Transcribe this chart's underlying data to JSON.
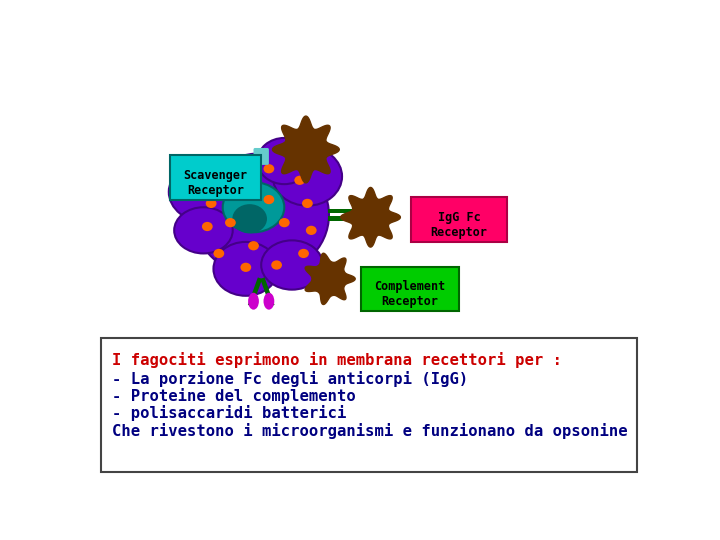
{
  "bg_color": "#ffffff",
  "text_box": {
    "line1": {
      "text": "I fagociti esprimono in membrana recettori per :",
      "color": "#cc0000",
      "bold": true
    },
    "line2": {
      "text": "- La porzione Fc degli anticorpi (IgG)",
      "color": "#000080",
      "bold": true
    },
    "line3": {
      "text": "- Proteine del complemento",
      "color": "#000080",
      "bold": true
    },
    "line4": {
      "text": "- polisaccaridi batterici",
      "color": "#000080",
      "bold": true
    },
    "line5": {
      "text": "Che rivestono i microorganismi e funzionano da opsonine",
      "color": "#000080",
      "bold": true
    }
  },
  "cell_color": "#6600cc",
  "dot_color": "#ff6600",
  "scavenger_box_color": "#00cccc",
  "scavenger_text": "Scavenger\nReceptor",
  "igg_box_color": "#ff0066",
  "igg_text": "IgG Fc\nReceptor",
  "complement_box_color": "#00cc00",
  "complement_text": "Complement\nReceptor",
  "receptor_color": "#006600",
  "spike_color": "#663300",
  "magenta_color": "#cc00cc"
}
